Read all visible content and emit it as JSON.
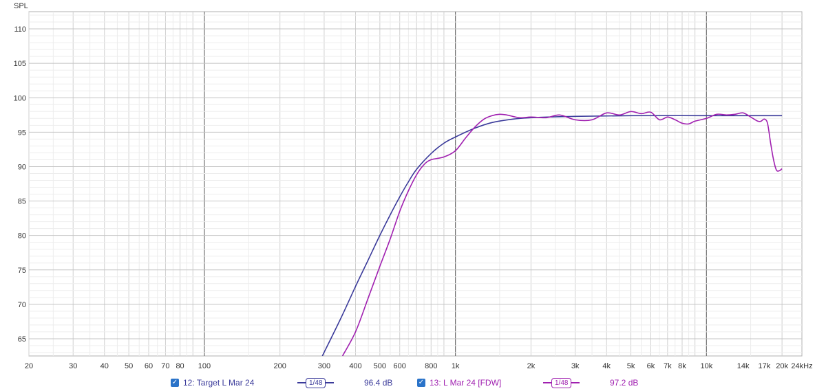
{
  "chart_data": {
    "type": "line",
    "ylabel": "SPL",
    "xunit": "Hz",
    "x_scale": "log",
    "xlim": [
      20,
      24000
    ],
    "ylim": [
      62.5,
      112.5
    ],
    "grid": true,
    "legend_placement": "bottom",
    "x_ticks": [
      {
        "v": 20,
        "label": "20"
      },
      {
        "v": 30,
        "label": "30"
      },
      {
        "v": 40,
        "label": "40"
      },
      {
        "v": 50,
        "label": "50"
      },
      {
        "v": 60,
        "label": "60"
      },
      {
        "v": 70,
        "label": "70"
      },
      {
        "v": 80,
        "label": "80"
      },
      {
        "v": 100,
        "label": "100"
      },
      {
        "v": 200,
        "label": "200"
      },
      {
        "v": 300,
        "label": "300"
      },
      {
        "v": 400,
        "label": "400"
      },
      {
        "v": 500,
        "label": "500"
      },
      {
        "v": 600,
        "label": "600"
      },
      {
        "v": 800,
        "label": "800"
      },
      {
        "v": 1000,
        "label": "1k"
      },
      {
        "v": 2000,
        "label": "2k"
      },
      {
        "v": 3000,
        "label": "3k"
      },
      {
        "v": 4000,
        "label": "4k"
      },
      {
        "v": 5000,
        "label": "5k"
      },
      {
        "v": 6000,
        "label": "6k"
      },
      {
        "v": 7000,
        "label": "7k"
      },
      {
        "v": 8000,
        "label": "8k"
      },
      {
        "v": 10000,
        "label": "10k"
      },
      {
        "v": 14000,
        "label": "14k"
      },
      {
        "v": 17000,
        "label": "17k"
      },
      {
        "v": 20000,
        "label": "20k"
      },
      {
        "v": 24000,
        "label": "24kHz"
      }
    ],
    "y_ticks": [
      65,
      70,
      75,
      80,
      85,
      90,
      95,
      100,
      105,
      110
    ],
    "series": [
      {
        "name": "12: Target L Mar 24",
        "color": "#3a3a9a",
        "points": [
          [
            295,
            62.5
          ],
          [
            350,
            68
          ],
          [
            400,
            72.6
          ],
          [
            450,
            76.5
          ],
          [
            500,
            80
          ],
          [
            550,
            83
          ],
          [
            600,
            85.6
          ],
          [
            650,
            87.8
          ],
          [
            700,
            89.6
          ],
          [
            800,
            91.9
          ],
          [
            900,
            93.4
          ],
          [
            1000,
            94.3
          ],
          [
            1200,
            95.6
          ],
          [
            1400,
            96.4
          ],
          [
            1700,
            96.9
          ],
          [
            2000,
            97.1
          ],
          [
            3000,
            97.3
          ],
          [
            5000,
            97.4
          ],
          [
            10000,
            97.4
          ],
          [
            20000,
            97.4
          ]
        ]
      },
      {
        "name": "13: L Mar 24 [FDW]",
        "color": "#a020b0",
        "points": [
          [
            355,
            62.5
          ],
          [
            400,
            66
          ],
          [
            450,
            71
          ],
          [
            500,
            75.5
          ],
          [
            550,
            79.5
          ],
          [
            600,
            83.5
          ],
          [
            650,
            86.5
          ],
          [
            700,
            88.8
          ],
          [
            750,
            90.3
          ],
          [
            800,
            91
          ],
          [
            900,
            91.4
          ],
          [
            1000,
            92.3
          ],
          [
            1100,
            94.2
          ],
          [
            1200,
            95.8
          ],
          [
            1300,
            96.9
          ],
          [
            1400,
            97.4
          ],
          [
            1500,
            97.6
          ],
          [
            1600,
            97.5
          ],
          [
            1800,
            97.1
          ],
          [
            2000,
            97.2
          ],
          [
            2300,
            97.1
          ],
          [
            2600,
            97.5
          ],
          [
            3000,
            96.8
          ],
          [
            3500,
            96.8
          ],
          [
            4000,
            97.8
          ],
          [
            4500,
            97.5
          ],
          [
            5000,
            98
          ],
          [
            5500,
            97.7
          ],
          [
            6000,
            97.9
          ],
          [
            6500,
            96.8
          ],
          [
            7000,
            97.2
          ],
          [
            7500,
            96.8
          ],
          [
            8000,
            96.3
          ],
          [
            8500,
            96.2
          ],
          [
            9000,
            96.6
          ],
          [
            10000,
            97
          ],
          [
            11000,
            97.6
          ],
          [
            12000,
            97.5
          ],
          [
            13000,
            97.6
          ],
          [
            14000,
            97.8
          ],
          [
            15000,
            97.2
          ],
          [
            16000,
            96.6
          ],
          [
            16500,
            96.6
          ],
          [
            17000,
            96.9
          ],
          [
            17500,
            96.3
          ],
          [
            18000,
            93.5
          ],
          [
            18500,
            91
          ],
          [
            19000,
            89.5
          ],
          [
            19500,
            89.4
          ],
          [
            20000,
            89.7
          ]
        ]
      }
    ]
  },
  "legend": {
    "entries": [
      {
        "name": "12: Target L Mar 24",
        "smoothing": "1/48",
        "value": "96.4 dB",
        "color": "#3a3a9a"
      },
      {
        "name": "13: L Mar 24 [FDW]",
        "smoothing": "1/48",
        "value": "97.2 dB",
        "color": "#a020b0"
      }
    ]
  },
  "check_glyph": "✓"
}
